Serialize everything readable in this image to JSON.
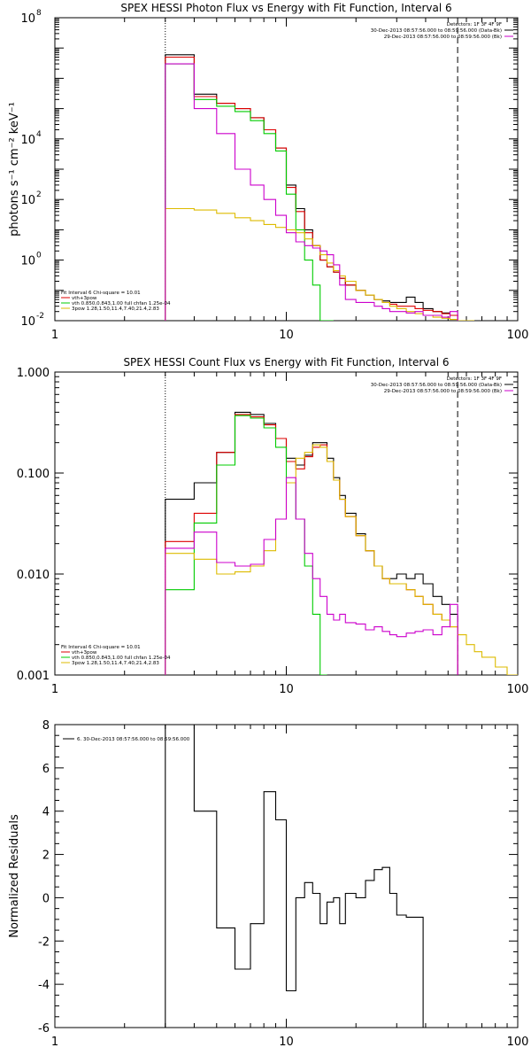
{
  "chart_data": [
    {
      "type": "line",
      "title": "SPEX HESSI Photon Flux vs Energy with Fit Function, Interval 6",
      "ylabel": "photons s⁻¹ cm⁻² keV⁻¹",
      "xscale": "log",
      "yscale": "log",
      "xlim": [
        1,
        100
      ],
      "ylim": [
        0.01,
        100000000
      ],
      "x_ticks": [
        {
          "value": 1,
          "label": "1"
        },
        {
          "value": 10,
          "label": "10"
        },
        {
          "value": 100,
          "label": "100"
        }
      ],
      "y_ticks": [
        {
          "value": 0.01,
          "base": "10",
          "exp": "-2"
        },
        {
          "value": 1,
          "base": "10",
          "exp": "0"
        },
        {
          "value": 100,
          "base": "10",
          "exp": "2"
        },
        {
          "value": 10000,
          "base": "10",
          "exp": "4"
        },
        {
          "value": 100000000,
          "base": "10",
          "exp": "8"
        }
      ],
      "legend_right": {
        "lines": [
          "Detectors: 1F 3F 4F 9F",
          "30-Dec-2013 08:57:56.000 to 08:59:56.000 (Data-Bk)",
          "29-Dec-2013 08:57:56.000 to 08:59:56.000 (Bk)"
        ],
        "colors": [
          "#000000",
          "#000000",
          "#cc00cc"
        ]
      },
      "legend_left": {
        "lines": [
          "Fit Interval 6   Chi-square = 10.01",
          "vth+3pow",
          "vth 0.850,0.843,1.00  full chfan 1.25e-04",
          "3pow 1.28,1.50,11.4,7.40,21.4,2.83"
        ],
        "colors": [
          "#000000",
          "#dd0000",
          "#00cc00",
          "#ddbb00"
        ]
      },
      "vlines": [
        {
          "x": 3,
          "style": "dotted"
        },
        {
          "x": 55,
          "style": "dashed"
        }
      ],
      "edges": [
        3,
        4,
        5,
        6,
        7,
        8,
        9,
        10,
        11,
        12,
        13,
        14,
        15,
        16,
        17,
        18,
        20,
        22,
        24,
        26,
        28,
        30,
        33,
        36,
        39,
        43,
        47,
        51,
        55,
        60,
        65,
        70
      ],
      "series": [
        {
          "color": "#000000",
          "values": [
            6000000,
            300000,
            150000,
            100000,
            50000,
            20000,
            5000,
            300,
            50,
            10,
            3,
            1,
            0.6,
            0.4,
            0.25,
            0.15,
            0.1,
            0.07,
            0.05,
            0.045,
            0.04,
            0.04,
            0.06,
            0.04,
            0.025,
            0.02,
            0.018,
            0.015,
            null,
            null,
            null
          ]
        },
        {
          "color": "#dd0000",
          "values": [
            5000000,
            250000,
            150000,
            100000,
            50000,
            20000,
            5000,
            250,
            40,
            8,
            3,
            1,
            0.6,
            0.4,
            0.25,
            0.15,
            0.1,
            0.07,
            0.05,
            0.04,
            0.035,
            0.03,
            0.03,
            0.025,
            0.022,
            0.02,
            0.017,
            0.015,
            null,
            null,
            null
          ]
        },
        {
          "color": "#00cc00",
          "values": [
            3000000,
            200000,
            120000,
            80000,
            40000,
            15000,
            4000,
            150,
            10,
            1,
            0.15,
            0.01,
            0.005,
            null,
            null,
            null,
            null,
            null,
            null,
            null,
            null,
            null,
            null,
            null,
            null,
            null,
            null,
            null,
            null,
            null,
            null
          ]
        },
        {
          "color": "#ddbb00",
          "values": [
            50,
            45,
            35,
            25,
            20,
            15,
            12,
            10,
            8,
            5,
            3,
            1.5,
            0.8,
            0.45,
            0.3,
            0.2,
            0.1,
            0.07,
            0.05,
            0.04,
            0.03,
            0.025,
            0.02,
            0.017,
            0.015,
            0.013,
            0.012,
            0.011,
            0.01,
            0.009,
            null
          ]
        },
        {
          "color": "#cc00cc",
          "values": [
            3000000,
            100000,
            15000,
            1000,
            300,
            100,
            30,
            8,
            4,
            3,
            2.5,
            2,
            1.5,
            0.7,
            0.15,
            0.05,
            0.04,
            0.04,
            0.03,
            0.025,
            0.02,
            0.02,
            0.018,
            0.02,
            0.015,
            0.015,
            0.013,
            0.02,
            null,
            null,
            null
          ]
        }
      ]
    },
    {
      "type": "line",
      "title": "SPEX HESSI Count Flux vs Energy with Fit Function, Interval 6",
      "xscale": "log",
      "yscale": "log",
      "xlim": [
        1,
        100
      ],
      "ylim": [
        0.001,
        1.0
      ],
      "x_ticks": [
        {
          "value": 1,
          "label": "1"
        },
        {
          "value": 10,
          "label": "10"
        },
        {
          "value": 100,
          "label": "100"
        }
      ],
      "y_ticks": [
        {
          "value": 0.001,
          "label": "0.001"
        },
        {
          "value": 0.01,
          "label": "0.010"
        },
        {
          "value": 0.1,
          "label": "0.100"
        },
        {
          "value": 1.0,
          "label": "1.000"
        }
      ],
      "legend_right": {
        "lines": [
          "Detectors: 1F 3F 4F 9F",
          "30-Dec-2013 08:57:56.000 to 08:59:56.000 (Data-Bk)",
          "29-Dec-2013 08:57:56.000 to 08:59:56.000 (Bk)"
        ],
        "colors": [
          "#000000",
          "#000000",
          "#cc00cc"
        ]
      },
      "legend_left": {
        "lines": [
          "Fit Interval 6   Chi-square = 10.01",
          "vth+3pow",
          "vth 0.850,0.843,1.00  full chfan 1.25e-04",
          "3pow 1.28,1.50,11.4,7.40,21.4,2.83"
        ],
        "colors": [
          "#000000",
          "#dd0000",
          "#00cc00",
          "#ddbb00"
        ]
      },
      "vlines": [
        {
          "x": 3,
          "style": "dotted"
        },
        {
          "x": 55,
          "style": "dashed"
        }
      ],
      "edges": [
        3,
        4,
        5,
        6,
        7,
        8,
        9,
        10,
        11,
        12,
        13,
        14,
        15,
        16,
        17,
        18,
        20,
        22,
        24,
        26,
        28,
        30,
        33,
        36,
        39,
        43,
        47,
        51,
        55,
        60,
        65,
        70,
        80,
        90,
        100
      ],
      "series": [
        {
          "color": "#000000",
          "values": [
            0.055,
            0.08,
            0.16,
            0.4,
            0.38,
            0.31,
            0.22,
            0.14,
            0.12,
            0.15,
            0.2,
            0.2,
            0.14,
            0.09,
            0.06,
            0.04,
            0.025,
            0.017,
            0.012,
            0.009,
            0.009,
            0.01,
            0.009,
            0.01,
            0.008,
            0.006,
            0.005,
            0.004,
            null,
            null,
            null,
            null,
            null,
            null
          ]
        },
        {
          "color": "#dd0000",
          "values": [
            0.021,
            0.04,
            0.16,
            0.38,
            0.36,
            0.3,
            0.22,
            0.13,
            0.11,
            0.145,
            0.18,
            0.19,
            0.13,
            0.085,
            0.055,
            0.037,
            0.024,
            0.017,
            0.012,
            0.009,
            0.008,
            0.008,
            0.007,
            0.006,
            0.005,
            0.004,
            0.0035,
            0.003,
            null,
            null,
            null,
            null,
            null,
            null
          ]
        },
        {
          "color": "#00cc00",
          "values": [
            0.007,
            0.032,
            0.12,
            0.37,
            0.35,
            0.28,
            0.18,
            0.08,
            0.035,
            0.012,
            0.004,
            0.001,
            null,
            null,
            null,
            null,
            null,
            null,
            null,
            null,
            null,
            null,
            null,
            null,
            null,
            null,
            null,
            null,
            null,
            null,
            null,
            null,
            null,
            null
          ]
        },
        {
          "color": "#ddbb00",
          "values": [
            0.016,
            0.014,
            0.01,
            0.0105,
            0.012,
            0.017,
            0.035,
            0.08,
            0.14,
            0.16,
            0.19,
            0.18,
            0.13,
            0.085,
            0.055,
            0.037,
            0.024,
            0.017,
            0.012,
            0.009,
            0.008,
            0.008,
            0.007,
            0.006,
            0.005,
            0.004,
            0.0035,
            0.003,
            0.0025,
            0.002,
            0.0017,
            0.0015,
            0.0012,
            0.001
          ]
        },
        {
          "color": "#cc00cc",
          "values": [
            0.018,
            0.026,
            0.013,
            0.012,
            0.0125,
            0.022,
            0.035,
            0.09,
            0.035,
            0.016,
            0.009,
            0.006,
            0.004,
            0.0035,
            0.004,
            0.0033,
            0.0032,
            0.0028,
            0.003,
            0.0027,
            0.0025,
            0.0024,
            0.0026,
            0.0027,
            0.0028,
            0.0025,
            0.003,
            0.005,
            null,
            null,
            null,
            null,
            null,
            null
          ]
        }
      ]
    },
    {
      "type": "line",
      "ylabel": "Normalized Residuals",
      "xscale": "log",
      "yscale": "linear",
      "xlim": [
        1,
        100
      ],
      "ylim": [
        -6,
        8
      ],
      "x_ticks": [
        {
          "value": 1,
          "label": "1"
        },
        {
          "value": 10,
          "label": "10"
        },
        {
          "value": 100,
          "label": "100"
        }
      ],
      "y_ticks": [
        {
          "value": -6,
          "label": "-6"
        },
        {
          "value": -4,
          "label": "-4"
        },
        {
          "value": -2,
          "label": "-2"
        },
        {
          "value": 0,
          "label": "0"
        },
        {
          "value": 2,
          "label": "2"
        },
        {
          "value": 4,
          "label": "4"
        },
        {
          "value": 6,
          "label": "6"
        },
        {
          "value": 8,
          "label": "8"
        }
      ],
      "legend_left": {
        "lines": [
          "6. 30-Dec-2013 08:57:56.000 to 08:59:56.000"
        ],
        "colors": [
          "#000000"
        ]
      },
      "edges": [
        3,
        4,
        5,
        6,
        7,
        8,
        9,
        10,
        11,
        12,
        13,
        14,
        15,
        16,
        17,
        18,
        20,
        22,
        24,
        26,
        28,
        30,
        33,
        36,
        39,
        43,
        47,
        51,
        55
      ],
      "series": [
        {
          "color": "#000000",
          "values": [
            8.1,
            4.0,
            -1.4,
            -3.3,
            -1.2,
            4.9,
            3.6,
            -4.3,
            0,
            0.7,
            0.2,
            -1.2,
            -0.2,
            0,
            -1.2,
            0.2,
            0,
            0.8,
            1.3,
            1.4,
            0.2,
            -0.8,
            -0.9,
            -0.9,
            null,
            null,
            null,
            null
          ]
        }
      ]
    }
  ]
}
